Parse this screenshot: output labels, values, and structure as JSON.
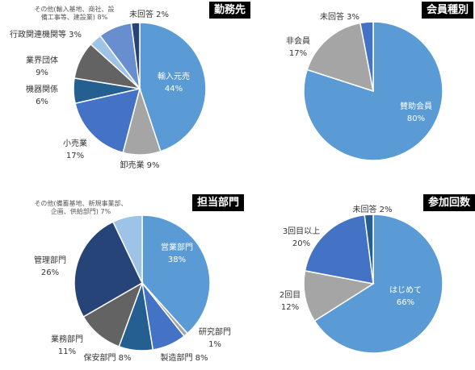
{
  "chart_data": [
    {
      "type": "pie",
      "title": "勤務先",
      "slices": [
        {
          "label": "輸入元売",
          "value": 44,
          "color": "#5B9BD5"
        },
        {
          "label": "卸売業",
          "value": 9,
          "color": "#A5A5A5"
        },
        {
          "label": "小売業",
          "value": 17,
          "color": "#4472C4"
        },
        {
          "label": "機器関係",
          "value": 6,
          "color": "#255E91"
        },
        {
          "label": "業界団体",
          "value": 9,
          "color": "#636363"
        },
        {
          "label": "行政関連機関等",
          "value": 3,
          "color": "#9DC3E6"
        },
        {
          "label": "その他(輸入基地、商社、設備工事等、建設業)",
          "value": 8,
          "color": "#698ED0"
        },
        {
          "label": "未回答",
          "value": 2,
          "color": "#264478"
        }
      ]
    },
    {
      "type": "pie",
      "title": "会員種別",
      "slices": [
        {
          "label": "賛助会員",
          "value": 80,
          "color": "#5B9BD5"
        },
        {
          "label": "非会員",
          "value": 17,
          "color": "#A5A5A5"
        },
        {
          "label": "未回答",
          "value": 3,
          "color": "#4472C4"
        }
      ]
    },
    {
      "type": "pie",
      "title": "担当部門",
      "slices": [
        {
          "label": "営業部門",
          "value": 38,
          "color": "#5B9BD5"
        },
        {
          "label": "研究部門",
          "value": 1,
          "color": "#A5A5A5"
        },
        {
          "label": "製造部門",
          "value": 8,
          "color": "#4472C4"
        },
        {
          "label": "保安部門",
          "value": 8,
          "color": "#255E91"
        },
        {
          "label": "業務部門",
          "value": 11,
          "color": "#636363"
        },
        {
          "label": "管理部門",
          "value": 26,
          "color": "#264478"
        },
        {
          "label": "その他(備蓄基地、新規事業部、企画、供給部門)",
          "value": 7,
          "color": "#9DC3E6"
        }
      ]
    },
    {
      "type": "pie",
      "title": "参加回数",
      "slices": [
        {
          "label": "はじめて",
          "value": 66,
          "color": "#5B9BD5"
        },
        {
          "label": "2回目",
          "value": 12,
          "color": "#A5A5A5"
        },
        {
          "label": "3回目以上",
          "value": 20,
          "color": "#4472C4"
        },
        {
          "label": "未回答",
          "value": 2,
          "color": "#255E91"
        }
      ]
    }
  ],
  "labels": {
    "c0": [
      {
        "lines": [
          "輸入元売",
          "44%"
        ]
      },
      {
        "lines": [
          "卸売業 9%"
        ]
      },
      {
        "lines": [
          "小売業",
          "17%"
        ]
      },
      {
        "lines": [
          "機器関係",
          "6%"
        ]
      },
      {
        "lines": [
          "業界団体",
          "9%"
        ]
      },
      {
        "lines": [
          "行政関連機関等 3%"
        ]
      },
      {
        "lines": [
          "その他(輸入基地、商社、設",
          "備工事等、建設業) 8%"
        ]
      },
      {
        "lines": [
          "未回答 2%"
        ]
      }
    ],
    "c1": [
      {
        "lines": [
          "賛助会員",
          "80%"
        ]
      },
      {
        "lines": [
          "非会員",
          "17%"
        ]
      },
      {
        "lines": [
          "未回答 3%"
        ]
      }
    ],
    "c2": [
      {
        "lines": [
          "営業部門",
          "38%"
        ]
      },
      {
        "lines": [
          "研究部門",
          "1%"
        ]
      },
      {
        "lines": [
          "製造部門 8%"
        ]
      },
      {
        "lines": [
          "保安部門 8%"
        ]
      },
      {
        "lines": [
          "業務部門",
          "11%"
        ]
      },
      {
        "lines": [
          "管理部門",
          "26%"
        ]
      },
      {
        "lines": [
          "その他(備蓄基地、新規事業部、",
          "企画、供給部門) 7%"
        ]
      }
    ],
    "c3": [
      {
        "lines": [
          "はじめて",
          "66%"
        ]
      },
      {
        "lines": [
          "2回目",
          "12%"
        ]
      },
      {
        "lines": [
          "3回目以上",
          "20%"
        ]
      },
      {
        "lines": [
          "未回答 2%"
        ]
      }
    ]
  }
}
